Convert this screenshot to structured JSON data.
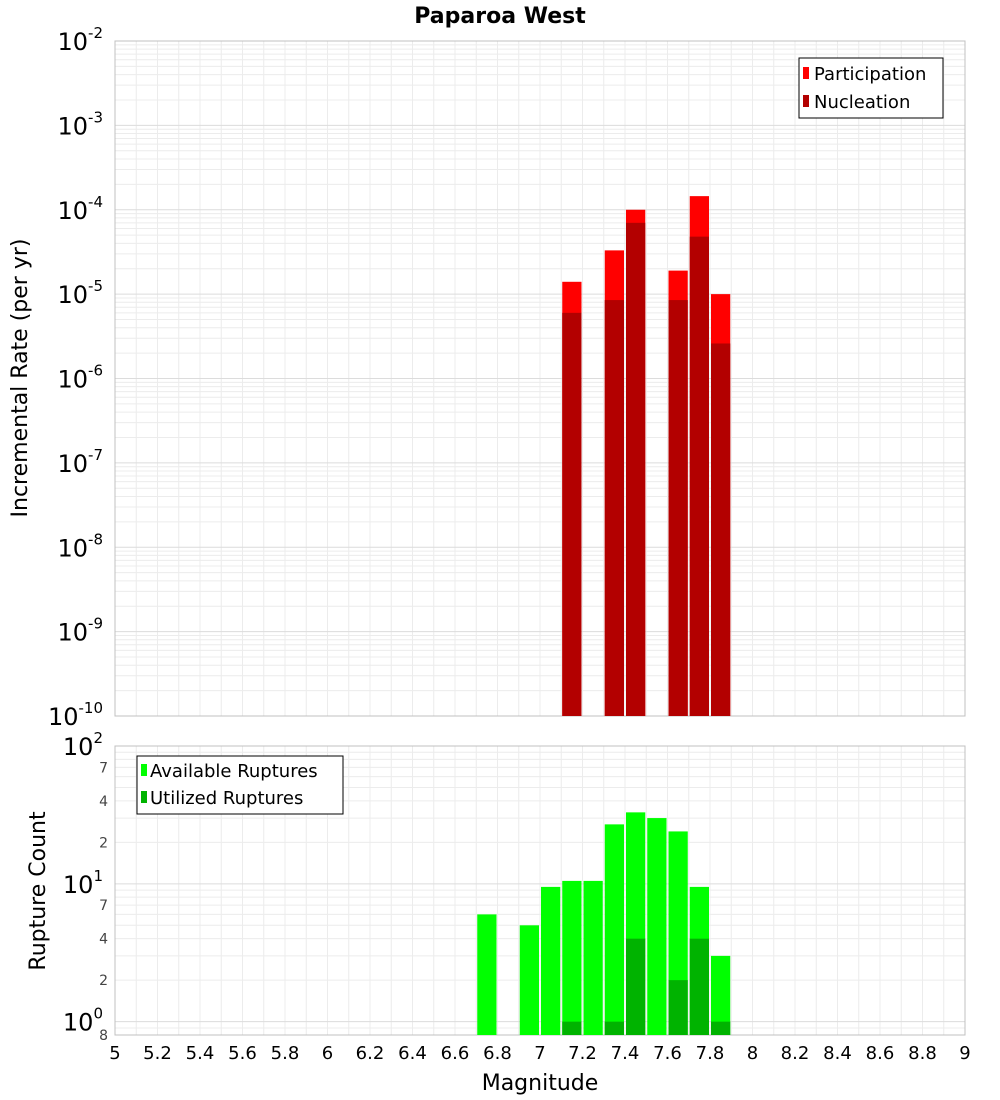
{
  "chart_data": [
    {
      "type": "bar",
      "title": "Paparoa West",
      "xlabel": "Magnitude",
      "ylabel": "Incremental Rate (per yr)",
      "yscale": "log",
      "ylim": [
        1e-10,
        0.01
      ],
      "xlim": [
        5,
        9
      ],
      "x_ticks": [
        "5",
        "5.2",
        "5.4",
        "5.6",
        "5.8",
        "6",
        "6.2",
        "6.4",
        "6.6",
        "6.8",
        "7",
        "7.2",
        "7.4",
        "7.6",
        "7.8",
        "8",
        "8.2",
        "8.4",
        "8.6",
        "8.8",
        "9"
      ],
      "y_ticks": [
        {
          "base": "10",
          "exp": "-2"
        },
        {
          "base": "10",
          "exp": "-3"
        },
        {
          "base": "10",
          "exp": "-4"
        },
        {
          "base": "10",
          "exp": "-5"
        },
        {
          "base": "10",
          "exp": "-6"
        },
        {
          "base": "10",
          "exp": "-7"
        },
        {
          "base": "10",
          "exp": "-8"
        },
        {
          "base": "10",
          "exp": "-9"
        },
        {
          "base": "10",
          "exp": "-10"
        }
      ],
      "legend_position": "top-right",
      "series": [
        {
          "name": "Participation",
          "color": "#ff0000",
          "x": [
            7.15,
            7.35,
            7.45,
            7.65,
            7.75,
            7.85
          ],
          "values": [
            1.4e-05,
            3.3e-05,
            0.0001,
            1.9e-05,
            0.000145,
            1e-05
          ]
        },
        {
          "name": "Nucleation",
          "color": "#b30000",
          "x": [
            7.15,
            7.35,
            7.45,
            7.65,
            7.75,
            7.85
          ],
          "values": [
            6e-06,
            8.5e-06,
            7e-05,
            8.5e-06,
            4.8e-05,
            2.6e-06
          ]
        }
      ]
    },
    {
      "type": "bar",
      "title": "",
      "xlabel": "Magnitude",
      "ylabel": "Rupture Count",
      "yscale": "log",
      "ylim": [
        0.8,
        100
      ],
      "xlim": [
        5,
        9
      ],
      "x_ticks": [
        "5",
        "5.2",
        "5.4",
        "5.6",
        "5.8",
        "6",
        "6.2",
        "6.4",
        "6.6",
        "6.8",
        "7",
        "7.2",
        "7.4",
        "7.6",
        "7.8",
        "8",
        "8.2",
        "8.4",
        "8.6",
        "8.8",
        "9"
      ],
      "y_major_ticks": [
        {
          "base": "10",
          "exp": "2",
          "value": 100
        },
        {
          "base": "10",
          "exp": "1",
          "value": 10
        },
        {
          "base": "10",
          "exp": "0",
          "value": 1
        }
      ],
      "y_minor_ticks": [
        {
          "label": "7",
          "value": 70
        },
        {
          "label": "4",
          "value": 40
        },
        {
          "label": "2",
          "value": 20
        },
        {
          "label": "7",
          "value": 7
        },
        {
          "label": "4",
          "value": 4
        },
        {
          "label": "2",
          "value": 2
        },
        {
          "label": "8",
          "value": 0.8
        }
      ],
      "legend_position": "top-left",
      "series": [
        {
          "name": "Available Ruptures",
          "color": "#00ff00",
          "x": [
            6.75,
            6.95,
            7.05,
            7.15,
            7.25,
            7.35,
            7.45,
            7.55,
            7.65,
            7.75,
            7.85
          ],
          "values": [
            6,
            5,
            9.5,
            10.5,
            10.5,
            27,
            33,
            30,
            24,
            9.5,
            3
          ]
        },
        {
          "name": "Utilized Ruptures",
          "color": "#00b300",
          "x": [
            7.15,
            7.35,
            7.45,
            7.65,
            7.75,
            7.85
          ],
          "values": [
            1,
            1,
            4,
            2,
            4,
            1
          ]
        }
      ]
    }
  ]
}
